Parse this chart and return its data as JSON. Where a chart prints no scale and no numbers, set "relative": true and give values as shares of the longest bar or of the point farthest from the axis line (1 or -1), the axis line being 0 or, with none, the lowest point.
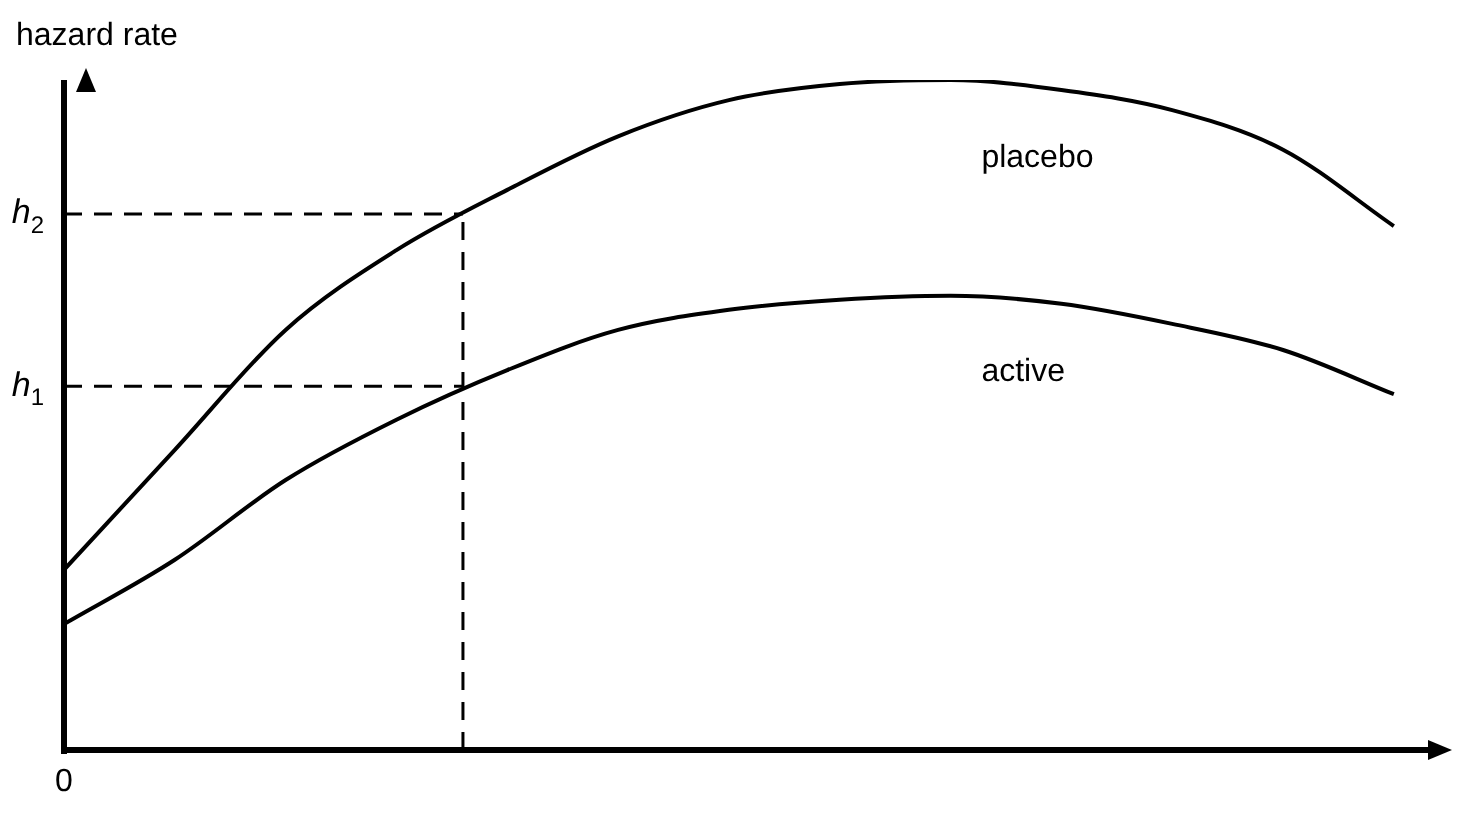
{
  "chart_data": {
    "type": "line",
    "relative": true,
    "ylabel": "hazard rate",
    "categories": [
      null,
      null,
      null,
      null,
      null,
      null,
      null,
      null,
      null,
      null,
      null,
      null,
      null
    ],
    "annotations": [
      "0"
    ],
    "tick_labels": false,
    "legend": false,
    "marker": "none",
    "line_style": "solid",
    "series": [
      {
        "name": "placebo",
        "color": "#000000",
        "values": [
          0.269,
          0.448,
          0.627,
          0.746,
          0.836,
          0.916,
          0.97,
          0.994,
          1.0,
          0.985,
          0.955,
          0.896,
          0.782
        ]
      },
      {
        "name": "active",
        "color": "#000000",
        "values": [
          0.188,
          0.284,
          0.403,
          0.493,
          0.567,
          0.627,
          0.657,
          0.672,
          0.678,
          0.666,
          0.636,
          0.597,
          0.531
        ]
      }
    ],
    "ref_lines": [
      {
        "axis": "y",
        "value": 0.8,
        "label": "h$_{2}$",
        "line_style": "dashed",
        "color": "#000000"
      },
      {
        "axis": "y",
        "value": 0.543,
        "label": "h$_{1}$",
        "line_style": "dashed",
        "color": "#000000"
      }
    ]
  }
}
